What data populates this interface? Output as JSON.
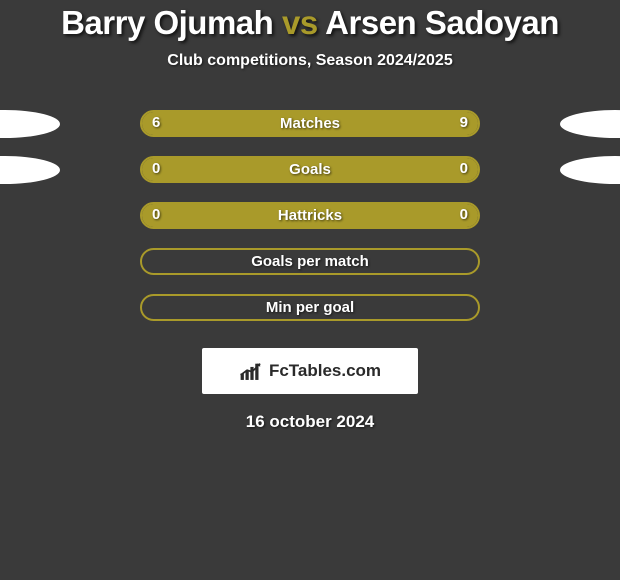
{
  "background_color": "#3a3a3a",
  "accent_color": "#a99a2a",
  "text_color": "#ffffff",
  "title": {
    "player1": "Barry Ojumah",
    "vs": "vs",
    "player2": "Arsen Sadoyan"
  },
  "subtitle": "Club competitions, Season 2024/2025",
  "stats": [
    {
      "label": "Matches",
      "left_val": "6",
      "right_val": "9",
      "left_fill_pct": 40,
      "right_fill_pct": 60,
      "show_ovals": true,
      "show_vals": true
    },
    {
      "label": "Goals",
      "left_val": "0",
      "right_val": "0",
      "left_fill_pct": 50,
      "right_fill_pct": 50,
      "show_ovals": true,
      "show_vals": true
    },
    {
      "label": "Hattricks",
      "left_val": "0",
      "right_val": "0",
      "left_fill_pct": 50,
      "right_fill_pct": 50,
      "show_ovals": false,
      "show_vals": true
    },
    {
      "label": "Goals per match",
      "left_val": "",
      "right_val": "",
      "left_fill_pct": 0,
      "right_fill_pct": 0,
      "show_ovals": false,
      "show_vals": false
    },
    {
      "label": "Min per goal",
      "left_val": "",
      "right_val": "",
      "left_fill_pct": 0,
      "right_fill_pct": 0,
      "show_ovals": false,
      "show_vals": false
    }
  ],
  "logo_text": "FcTables.com",
  "date": "16 october 2024"
}
